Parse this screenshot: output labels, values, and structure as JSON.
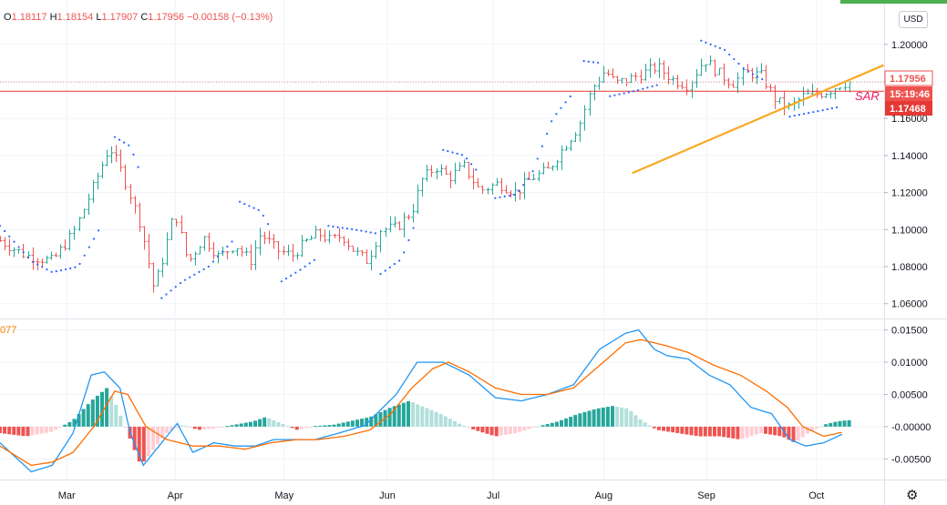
{
  "legend": {
    "open_label": "O",
    "open": "1.18117",
    "high_label": "H",
    "high": "1.18154",
    "low_label": "L",
    "low": "1.17907",
    "close_label": "C",
    "close": "1.17956",
    "change": "−0.00158 (−0.13%)"
  },
  "currency_button": "USD",
  "indicator_label": "077",
  "sar_annotation": "SAR",
  "price_tags": {
    "last_price": "1.17956",
    "countdown": "15:19:46",
    "line_price": "1.17468"
  },
  "colors": {
    "up": "#26a69a",
    "down": "#ef5350",
    "sar_dots": "#2962ff",
    "trendline": "#f9a825",
    "hline": "#e53935",
    "macd": "#2196f3",
    "signal": "#ff6d00",
    "hist_up_strong": "#26a69a",
    "hist_up_weak": "#b2dfdb",
    "hist_down_strong": "#ef5350",
    "hist_down_weak": "#ffcdd2"
  },
  "chart_data": [
    {
      "type": "candlestick",
      "title": "",
      "y_ticks": [
        "1.20000",
        "1.18000",
        "1.16000",
        "1.14000",
        "1.12000",
        "1.10000",
        "1.08000",
        "1.06000"
      ],
      "ylim": [
        1.052,
        1.222
      ],
      "x_ticks": [
        "Mar",
        "Apr",
        "May",
        "Jun",
        "Jul",
        "Aug",
        "Sep",
        "Oct"
      ],
      "horizontal_line": 1.17468,
      "last_price": 1.17956,
      "trendline": {
        "from": {
          "month_index": 4.95,
          "price": 1.1305
        },
        "to": {
          "month_index": 8.02,
          "price": 1.1888
        }
      },
      "close_path": [
        [
          0.0,
          1.094
        ],
        [
          0.5,
          1.086
        ],
        [
          1.0,
          1.083
        ],
        [
          1.4,
          1.098
        ],
        [
          1.8,
          1.124
        ],
        [
          2.1,
          1.145
        ],
        [
          2.35,
          1.13
        ],
        [
          2.7,
          1.102
        ],
        [
          2.95,
          1.068
        ],
        [
          3.1,
          1.082
        ],
        [
          3.35,
          1.11
        ],
        [
          3.6,
          1.082
        ],
        [
          3.9,
          1.096
        ],
        [
          4.2,
          1.085
        ],
        [
          4.5,
          1.092
        ],
        [
          4.8,
          1.083
        ],
        [
          5.0,
          1.098
        ],
        [
          5.3,
          1.089
        ],
        [
          5.6,
          1.086
        ],
        [
          5.85,
          1.093
        ],
        [
          6.1,
          1.098
        ],
        [
          6.35,
          1.094
        ],
        [
          6.55,
          1.097
        ],
        [
          6.8,
          1.088
        ],
        [
          7.05,
          1.083
        ],
        [
          7.3,
          1.1
        ],
        [
          7.6,
          1.101
        ],
        [
          7.9,
          1.11
        ],
        [
          8.1,
          1.127
        ],
        [
          8.35,
          1.134
        ],
        [
          8.6,
          1.128
        ],
        [
          8.9,
          1.134
        ],
        [
          9.2,
          1.121
        ],
        [
          9.55,
          1.125
        ],
        [
          9.9,
          1.12
        ],
        [
          10.2,
          1.128
        ],
        [
          10.5,
          1.132
        ],
        [
          10.8,
          1.144
        ],
        [
          11.1,
          1.156
        ],
        [
          11.35,
          1.176
        ],
        [
          11.6,
          1.186
        ],
        [
          11.8,
          1.179
        ],
        [
          12.05,
          1.181
        ],
        [
          12.3,
          1.184
        ],
        [
          12.6,
          1.188
        ],
        [
          12.9,
          1.181
        ],
        [
          13.2,
          1.178
        ],
        [
          13.5,
          1.192
        ],
        [
          13.8,
          1.184
        ],
        [
          14.05,
          1.179
        ],
        [
          14.3,
          1.185
        ],
        [
          14.6,
          1.183
        ],
        [
          14.9,
          1.169
        ],
        [
          15.15,
          1.166
        ],
        [
          15.4,
          1.172
        ],
        [
          15.65,
          1.173
        ],
        [
          15.9,
          1.175
        ],
        [
          16.15,
          1.179
        ],
        [
          16.3,
          1.1796
        ]
      ],
      "sar_segments": [
        {
          "side": "below",
          "points": [
            [
              0.0,
              1.102
            ],
            [
              0.6,
              1.083
            ],
            [
              1.0,
              1.077
            ],
            [
              1.5,
              1.08
            ],
            [
              1.9,
              1.1
            ]
          ]
        },
        {
          "side": "above",
          "points": [
            [
              2.2,
              1.15
            ],
            [
              2.5,
              1.145
            ],
            [
              2.7,
              1.13
            ]
          ]
        },
        {
          "side": "below",
          "points": [
            [
              3.1,
              1.063
            ],
            [
              3.5,
              1.072
            ],
            [
              4.0,
              1.08
            ],
            [
              4.5,
              1.095
            ]
          ]
        },
        {
          "side": "above",
          "points": [
            [
              4.6,
              1.115
            ],
            [
              5.0,
              1.11
            ],
            [
              5.2,
              1.1
            ]
          ]
        },
        {
          "side": "below",
          "points": [
            [
              5.4,
              1.072
            ],
            [
              5.8,
              1.079
            ],
            [
              6.05,
              1.084
            ]
          ]
        },
        {
          "side": "above",
          "points": [
            [
              6.3,
              1.102
            ],
            [
              6.8,
              1.1
            ],
            [
              7.2,
              1.098
            ]
          ]
        },
        {
          "side": "below",
          "points": [
            [
              7.3,
              1.076
            ],
            [
              7.7,
              1.084
            ],
            [
              8.0,
              1.106
            ]
          ]
        },
        {
          "side": "above",
          "points": [
            [
              8.5,
              1.143
            ],
            [
              8.9,
              1.14
            ],
            [
              9.2,
              1.13
            ]
          ]
        },
        {
          "side": "below",
          "points": [
            [
              9.5,
              1.117
            ],
            [
              9.9,
              1.119
            ],
            [
              10.2,
              1.13
            ],
            [
              10.6,
              1.16
            ],
            [
              11.0,
              1.174
            ]
          ]
        },
        {
          "side": "above",
          "points": [
            [
              11.2,
              1.191
            ],
            [
              11.5,
              1.19
            ]
          ]
        },
        {
          "side": "below",
          "points": [
            [
              11.7,
              1.172
            ],
            [
              12.2,
              1.175
            ],
            [
              12.6,
              1.178
            ]
          ]
        },
        {
          "side": "above",
          "points": [
            [
              13.45,
              1.202
            ],
            [
              13.9,
              1.197
            ],
            [
              14.3,
              1.186
            ],
            [
              14.7,
              1.18
            ]
          ]
        },
        {
          "side": "below",
          "points": [
            [
              15.15,
              1.161
            ],
            [
              15.7,
              1.164
            ],
            [
              16.05,
              1.166
            ]
          ]
        }
      ]
    },
    {
      "type": "macd",
      "title": "",
      "y_ticks": [
        "0.01500",
        "0.01000",
        "0.00500",
        "-0.00000",
        "-0.00500"
      ],
      "ylim": [
        -0.0082,
        0.0165
      ],
      "macd_line": [
        [
          0.0,
          -0.0025
        ],
        [
          0.6,
          -0.007
        ],
        [
          1.0,
          -0.006
        ],
        [
          1.4,
          -0.001
        ],
        [
          1.75,
          0.008
        ],
        [
          2.0,
          0.0085
        ],
        [
          2.3,
          0.006
        ],
        [
          2.5,
          -0.001
        ],
        [
          2.75,
          -0.006
        ],
        [
          3.05,
          -0.003
        ],
        [
          3.4,
          0.0005
        ],
        [
          3.7,
          -0.004
        ],
        [
          4.1,
          -0.0025
        ],
        [
          4.5,
          -0.003
        ],
        [
          4.9,
          -0.003
        ],
        [
          5.25,
          -0.002
        ],
        [
          5.6,
          -0.002
        ],
        [
          6.05,
          -0.002
        ],
        [
          6.5,
          -0.001
        ],
        [
          7.0,
          0.0002
        ],
        [
          7.6,
          0.005
        ],
        [
          8.0,
          0.01
        ],
        [
          8.5,
          0.01
        ],
        [
          9.0,
          0.008
        ],
        [
          9.5,
          0.0045
        ],
        [
          10.0,
          0.004
        ],
        [
          10.5,
          0.005
        ],
        [
          11.0,
          0.0065
        ],
        [
          11.5,
          0.012
        ],
        [
          12.0,
          0.0145
        ],
        [
          12.25,
          0.015
        ],
        [
          12.55,
          0.012
        ],
        [
          12.8,
          0.011
        ],
        [
          13.2,
          0.0105
        ],
        [
          13.6,
          0.008
        ],
        [
          14.0,
          0.0065
        ],
        [
          14.4,
          0.003
        ],
        [
          14.8,
          0.002
        ],
        [
          15.15,
          -0.002
        ],
        [
          15.45,
          -0.003
        ],
        [
          15.8,
          -0.0025
        ],
        [
          16.2,
          -0.001
        ]
      ],
      "signal_line": [
        [
          0.0,
          -0.003
        ],
        [
          0.6,
          -0.006
        ],
        [
          1.0,
          -0.0055
        ],
        [
          1.4,
          -0.004
        ],
        [
          1.8,
          0.0
        ],
        [
          2.2,
          0.0055
        ],
        [
          2.45,
          0.005
        ],
        [
          2.8,
          0.0
        ],
        [
          3.2,
          -0.002
        ],
        [
          3.7,
          -0.003
        ],
        [
          4.2,
          -0.003
        ],
        [
          4.7,
          -0.0035
        ],
        [
          5.2,
          -0.0025
        ],
        [
          5.7,
          -0.002
        ],
        [
          6.1,
          -0.002
        ],
        [
          6.6,
          -0.0015
        ],
        [
          7.1,
          -0.0005
        ],
        [
          7.5,
          0.002
        ],
        [
          7.9,
          0.006
        ],
        [
          8.3,
          0.009
        ],
        [
          8.6,
          0.01
        ],
        [
          9.0,
          0.0085
        ],
        [
          9.5,
          0.006
        ],
        [
          10.0,
          0.005
        ],
        [
          10.5,
          0.005
        ],
        [
          11.0,
          0.006
        ],
        [
          11.5,
          0.0095
        ],
        [
          12.0,
          0.013
        ],
        [
          12.3,
          0.0135
        ],
        [
          12.8,
          0.0125
        ],
        [
          13.2,
          0.0115
        ],
        [
          13.7,
          0.0095
        ],
        [
          14.2,
          0.008
        ],
        [
          14.7,
          0.0055
        ],
        [
          15.1,
          0.003
        ],
        [
          15.4,
          0.0
        ],
        [
          15.8,
          -0.0015
        ],
        [
          16.2,
          -0.0008
        ]
      ],
      "histogram": [
        [
          0.0,
          -0.001
        ],
        [
          0.5,
          -0.0015
        ],
        [
          1.0,
          -0.0008
        ],
        [
          1.4,
          0.001
        ],
        [
          1.75,
          0.004
        ],
        [
          2.05,
          0.006
        ],
        [
          2.25,
          0.003
        ],
        [
          2.45,
          -0.001
        ],
        [
          2.7,
          -0.006
        ],
        [
          2.95,
          -0.0035
        ],
        [
          3.2,
          -0.001
        ],
        [
          3.5,
          0.0003
        ],
        [
          3.8,
          -0.0005
        ],
        [
          4.1,
          -0.0003
        ],
        [
          4.5,
          0.0003
        ],
        [
          4.85,
          0.0008
        ],
        [
          5.1,
          0.0015
        ],
        [
          5.4,
          0.0005
        ],
        [
          5.7,
          -0.0005
        ],
        [
          6.05,
          0.0001
        ],
        [
          6.4,
          0.0003
        ],
        [
          6.8,
          0.001
        ],
        [
          7.1,
          0.0015
        ],
        [
          7.5,
          0.003
        ],
        [
          7.85,
          0.004
        ],
        [
          8.15,
          0.003
        ],
        [
          8.45,
          0.002
        ],
        [
          8.8,
          0.0005
        ],
        [
          9.1,
          -0.0005
        ],
        [
          9.5,
          -0.0015
        ],
        [
          9.9,
          -0.001
        ],
        [
          10.3,
          0.0
        ],
        [
          10.7,
          0.0008
        ],
        [
          11.1,
          0.002
        ],
        [
          11.45,
          0.0028
        ],
        [
          11.75,
          0.0032
        ],
        [
          12.05,
          0.0028
        ],
        [
          12.3,
          0.001
        ],
        [
          12.6,
          -0.0005
        ],
        [
          13.0,
          -0.001
        ],
        [
          13.4,
          -0.0015
        ],
        [
          13.8,
          -0.0015
        ],
        [
          14.2,
          -0.002
        ],
        [
          14.6,
          -0.001
        ],
        [
          15.0,
          -0.0015
        ],
        [
          15.25,
          -0.0025
        ],
        [
          15.5,
          -0.001
        ],
        [
          15.8,
          0.0003
        ],
        [
          16.05,
          0.0008
        ],
        [
          16.25,
          0.001
        ]
      ]
    }
  ]
}
